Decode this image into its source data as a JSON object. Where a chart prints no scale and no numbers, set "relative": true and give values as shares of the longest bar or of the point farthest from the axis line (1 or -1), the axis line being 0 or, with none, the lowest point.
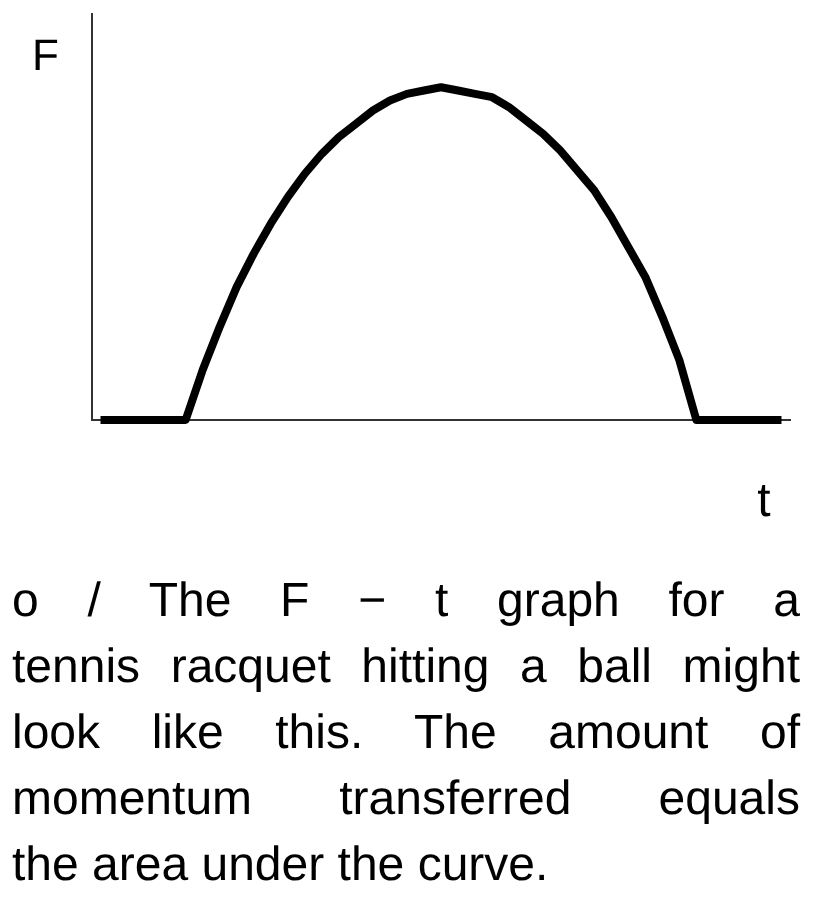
{
  "chart_data": {
    "type": "line",
    "relative": true,
    "ylabel": "F",
    "xlabel": "t",
    "color": "#000000",
    "categories": [
      null,
      null,
      null,
      null,
      null,
      null,
      null,
      null,
      null,
      null,
      null,
      null,
      null,
      null,
      null,
      null,
      null,
      null,
      null,
      null,
      null,
      null,
      null,
      null,
      null,
      null,
      null,
      null,
      null,
      null,
      null,
      null,
      null,
      null,
      null,
      null,
      null,
      null,
      null,
      null,
      null
    ],
    "values": [
      0,
      0,
      0,
      0,
      0,
      0,
      0.15,
      0.28,
      0.4,
      0.5,
      0.59,
      0.67,
      0.74,
      0.8,
      0.85,
      0.89,
      0.93,
      0.96,
      0.98,
      0.99,
      1,
      0.99,
      0.98,
      0.97,
      0.94,
      0.9,
      0.86,
      0.81,
      0.75,
      0.69,
      0.61,
      0.52,
      0.43,
      0.31,
      0.18,
      0,
      0,
      0,
      0,
      0,
      0
    ],
    "annotations": [
      "o / The F − t graph for a\ntennis racquet hitting a ball might\nlook like this. The amount of\nmomentum transferred equals\nthe area under the curve."
    ]
  }
}
